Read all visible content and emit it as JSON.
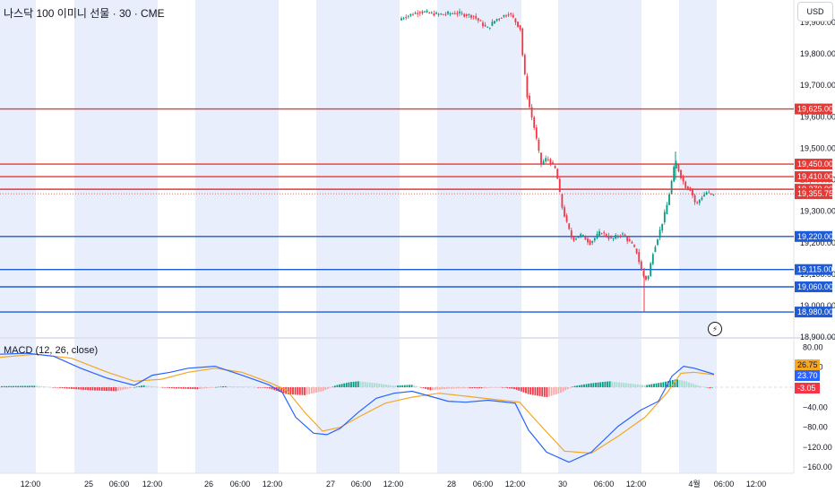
{
  "header": {
    "title": "나스닥 100 이미니 선물 · 30 · CME",
    "currency_label": "USD",
    "event_icon": "lightning-icon"
  },
  "macd": {
    "label": "MACD (12, 26, close)",
    "axis_ticks": [
      "80.00",
      "40.00",
      "0.00",
      "−40.00",
      "−80.00",
      "−120.00",
      "−160.00"
    ],
    "badges": {
      "histogram": {
        "value": "26.75",
        "color": "#f5a623"
      },
      "macd": {
        "value": "23.70",
        "color": "#2962ff"
      },
      "signal": {
        "value": "-3.05",
        "color": "#f23645"
      }
    }
  },
  "chart_data": {
    "type": "candlestick",
    "price_axis_ticks": [
      "19,900.00",
      "19,800.00",
      "19,700.00",
      "19,600.00",
      "19,500.00",
      "19,400.00",
      "19,300.00",
      "19,200.00",
      "19,100.00",
      "19,000.00",
      "18,900.00"
    ],
    "time_axis_ticks": [
      "12:00",
      "25",
      "06:00",
      "12:00",
      "26",
      "06:00",
      "12:00",
      "27",
      "06:00",
      "12:00",
      "28",
      "06:00",
      "12:00",
      "30",
      "06:00",
      "12:00",
      "4월",
      "06:00",
      "12:00"
    ],
    "current_price": "19,355.75",
    "resistance_levels": [
      {
        "value": 19625,
        "label": "19,625.00"
      },
      {
        "value": 19450,
        "label": "19,450.00"
      },
      {
        "value": 19410,
        "label": "19,410.00"
      },
      {
        "value": 19370,
        "label": "19,370.00"
      }
    ],
    "support_levels": [
      {
        "value": 19220,
        "label": "19,220.00"
      },
      {
        "value": 19115,
        "label": "19,115.00"
      },
      {
        "value": 19060,
        "label": "19,060.00"
      },
      {
        "value": 18980,
        "label": "18,980.00"
      }
    ],
    "colors": {
      "up": "#089981",
      "down": "#f23645",
      "resistance": "#e53935",
      "support": "#1e5bd8",
      "session": "#e8eefb"
    }
  }
}
